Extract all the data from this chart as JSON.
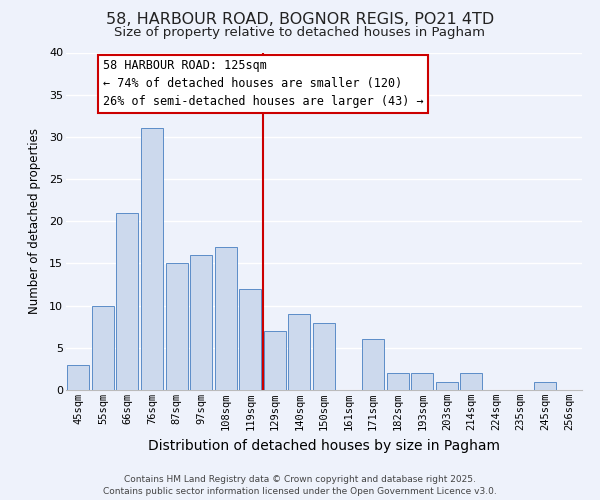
{
  "title": "58, HARBOUR ROAD, BOGNOR REGIS, PO21 4TD",
  "subtitle": "Size of property relative to detached houses in Pagham",
  "xlabel": "Distribution of detached houses by size in Pagham",
  "ylabel": "Number of detached properties",
  "bar_labels": [
    "45sqm",
    "55sqm",
    "66sqm",
    "76sqm",
    "87sqm",
    "97sqm",
    "108sqm",
    "119sqm",
    "129sqm",
    "140sqm",
    "150sqm",
    "161sqm",
    "171sqm",
    "182sqm",
    "193sqm",
    "203sqm",
    "214sqm",
    "224sqm",
    "235sqm",
    "245sqm",
    "256sqm"
  ],
  "bar_values": [
    3,
    10,
    21,
    31,
    15,
    16,
    17,
    12,
    7,
    9,
    8,
    0,
    6,
    2,
    2,
    1,
    2,
    0,
    0,
    1,
    0
  ],
  "bar_color": "#ccd9ed",
  "bar_edge_color": "#5b8dc8",
  "background_color": "#eef2fb",
  "grid_color": "#ffffff",
  "vline_x": 7.5,
  "vline_color": "#cc0000",
  "annotation_title": "58 HARBOUR ROAD: 125sqm",
  "annotation_line1": "← 74% of detached houses are smaller (120)",
  "annotation_line2": "26% of semi-detached houses are larger (43) →",
  "annotation_box_edgecolor": "#cc0000",
  "ylim": [
    0,
    40
  ],
  "yticks": [
    0,
    5,
    10,
    15,
    20,
    25,
    30,
    35,
    40
  ],
  "footer_line1": "Contains HM Land Registry data © Crown copyright and database right 2025.",
  "footer_line2": "Contains public sector information licensed under the Open Government Licence v3.0.",
  "title_fontsize": 11.5,
  "subtitle_fontsize": 9.5,
  "xlabel_fontsize": 10,
  "ylabel_fontsize": 8.5,
  "tick_fontsize": 7.5,
  "annotation_fontsize": 8.5,
  "footer_fontsize": 6.5
}
